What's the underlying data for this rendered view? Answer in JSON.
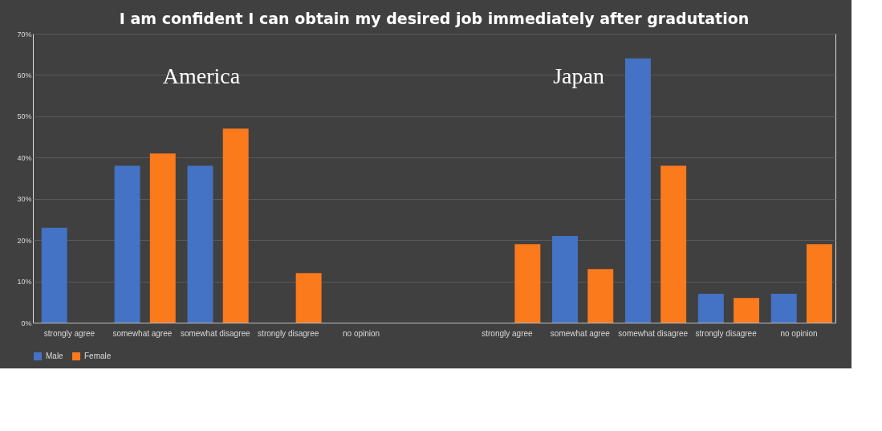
{
  "chart_data": {
    "type": "bar",
    "title": "I am confident I can obtain my desired job immediately after gradutation",
    "categories": [
      "strongly agree",
      "somewhat agree",
      "somewhat disagree",
      "strongly disagree",
      "no opinion",
      null,
      "strongly agree",
      "somewhat agree",
      "somewhat disagree",
      "strongly disagree",
      "no opinion"
    ],
    "series": [
      {
        "name": "Male",
        "color": "#4472c4",
        "values": [
          23,
          38,
          38,
          0,
          0,
          null,
          0,
          21,
          64,
          7,
          7
        ]
      },
      {
        "name": "Female",
        "color": "#fb7a1c",
        "values": [
          0,
          41,
          47,
          12,
          0,
          null,
          19,
          13,
          38,
          6,
          19
        ]
      }
    ],
    "ylim": [
      0,
      70
    ],
    "yticks": [
      {
        "value": 0,
        "label": "0%"
      },
      {
        "value": 10,
        "label": "10%"
      },
      {
        "value": 20,
        "label": "20%"
      },
      {
        "value": 30,
        "label": "30%"
      },
      {
        "value": 40,
        "label": "40%"
      },
      {
        "value": 50,
        "label": "50%"
      },
      {
        "value": 60,
        "label": "60%"
      },
      {
        "value": 70,
        "label": "70%"
      }
    ],
    "grid": "y",
    "legend": "bottom",
    "annotations": [
      "America",
      "Japan"
    ]
  }
}
